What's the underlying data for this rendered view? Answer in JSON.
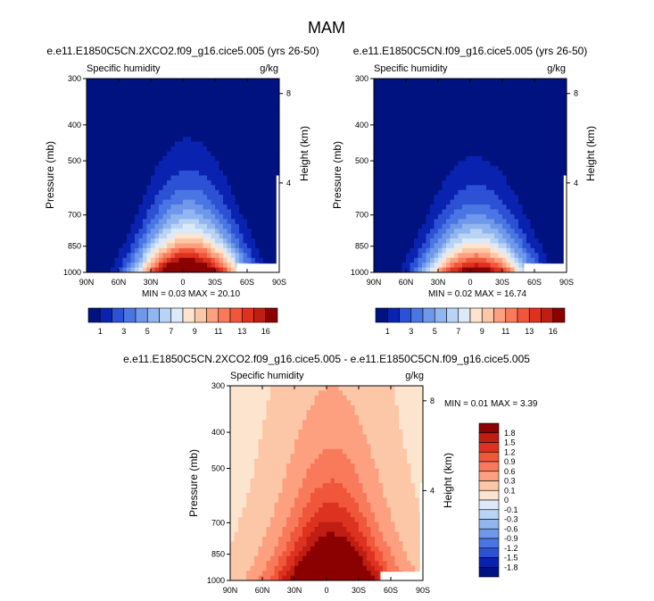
{
  "figure": {
    "title": "MAM"
  },
  "colors": {
    "pos": [
      "#fde4cf",
      "#fcc7a6",
      "#fca080",
      "#f97a5a",
      "#f0573a",
      "#de3221",
      "#c11e13",
      "#8b0000"
    ],
    "neg": [
      "#dce9f9",
      "#b9d3f4",
      "#91b6ef",
      "#6f97ea",
      "#4a76e3",
      "#2c51d4",
      "#0a22b0",
      "#00127f"
    ],
    "colorbar_tick_labels": [
      "1",
      "3",
      "5",
      "7",
      "9",
      "11",
      "13",
      "16"
    ],
    "diff_tick_labels": [
      "1.8",
      "1.5",
      "1.2",
      "0.9",
      "0.6",
      "0.3",
      "0.1",
      "0",
      "-0.1",
      "-0.3",
      "-0.6",
      "-0.9",
      "-1.2",
      "-1.5",
      "-1.8"
    ]
  },
  "chart_data": [
    {
      "type": "heatmap",
      "panel": "top-left",
      "title": "e.e11.E1850C5CN.2XCO2.f09_g16.cice5.005 (yrs 26-50)",
      "left_string": "Specific humidity",
      "right_string": "g/kg",
      "xlabel": "",
      "ylabel": "Pressure (mb)",
      "ylabel_right": "Height (km)",
      "x_ticks": [
        "90N",
        "60N",
        "30N",
        "0",
        "30S",
        "60S",
        "90S"
      ],
      "x_values": [
        90,
        60,
        30,
        0,
        -30,
        -60,
        -90
      ],
      "y_ticks": [
        "300",
        "400",
        "500",
        "700",
        "850",
        "1000"
      ],
      "y_values": [
        300,
        400,
        500,
        700,
        850,
        1000
      ],
      "height_ticks": [
        "8",
        "4"
      ],
      "height_values": [
        8,
        4
      ],
      "ylim": [
        1000,
        300
      ],
      "xlim": [
        90,
        -90
      ],
      "contour_levels": [
        1,
        2,
        3,
        4,
        5,
        6,
        7,
        8,
        9,
        10,
        11,
        12,
        13,
        14,
        15,
        16
      ],
      "min_label": "MIN =  0.03   MAX = 20.10",
      "min": 0.03,
      "max": 20.1,
      "peak_value": 20.1,
      "scale_height": 0.98
    },
    {
      "type": "heatmap",
      "panel": "top-right",
      "title": "e.e11.E1850C5CN.f09_g16.cice5.005 (yrs 26-50)",
      "left_string": "Specific humidity",
      "right_string": "g/kg",
      "xlabel": "",
      "ylabel": "Pressure (mb)",
      "ylabel_right": "Height (km)",
      "x_ticks": [
        "90N",
        "60N",
        "30N",
        "0",
        "30S",
        "60S",
        "90S"
      ],
      "x_values": [
        90,
        60,
        30,
        0,
        -30,
        -60,
        -90
      ],
      "y_ticks": [
        "300",
        "400",
        "500",
        "700",
        "850",
        "1000"
      ],
      "y_values": [
        300,
        400,
        500,
        700,
        850,
        1000
      ],
      "height_ticks": [
        "8",
        "4"
      ],
      "height_values": [
        8,
        4
      ],
      "ylim": [
        1000,
        300
      ],
      "xlim": [
        90,
        -90
      ],
      "contour_levels": [
        1,
        2,
        3,
        4,
        5,
        6,
        7,
        8,
        9,
        10,
        11,
        12,
        13,
        14,
        15,
        16
      ],
      "min_label": "MIN =  0.02   MAX = 16.74",
      "min": 0.02,
      "max": 16.74,
      "peak_value": 16.74,
      "scale_height": 0.9
    },
    {
      "type": "heatmap",
      "panel": "bottom",
      "title": "e.e11.E1850C5CN.2XCO2.f09_g16.cice5.005 - e.e11.E1850C5CN.f09_g16.cice5.005",
      "left_string": "Specific humidity",
      "right_string": "g/kg",
      "xlabel": "",
      "ylabel": "Pressure (mb)",
      "ylabel_right": "Height (km)",
      "x_ticks": [
        "90N",
        "60N",
        "30N",
        "0",
        "30S",
        "60S",
        "90S"
      ],
      "x_values": [
        90,
        60,
        30,
        0,
        -30,
        -60,
        -90
      ],
      "y_ticks": [
        "300",
        "400",
        "500",
        "700",
        "850",
        "1000"
      ],
      "y_values": [
        300,
        400,
        500,
        700,
        850,
        1000
      ],
      "height_ticks": [
        "8",
        "4"
      ],
      "height_values": [
        8,
        4
      ],
      "ylim": [
        1000,
        300
      ],
      "xlim": [
        90,
        -90
      ],
      "contour_levels": [
        -1.8,
        -1.5,
        -1.2,
        -0.9,
        -0.6,
        -0.3,
        -0.1,
        0,
        0.1,
        0.3,
        0.6,
        0.9,
        1.2,
        1.5,
        1.8
      ],
      "min_label": "MIN =  0.01   MAX =  3.39",
      "min": 0.01,
      "max": 3.39
    }
  ]
}
